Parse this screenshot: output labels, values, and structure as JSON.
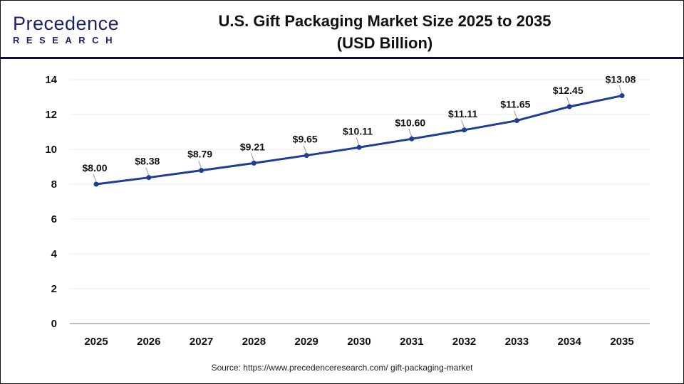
{
  "logo": {
    "main": "Precedence",
    "sub": "RESEARCH"
  },
  "title_line1": "U.S. Gift Packaging Market Size 2025 to 2035",
  "title_line2": "(USD Billion)",
  "source": "Source: https://www.precedenceresearch.com/ gift-packaging-market",
  "chart_data": {
    "type": "line",
    "title": "U.S. Gift Packaging Market Size 2025 to 2035 (USD Billion)",
    "categories": [
      "2025",
      "2026",
      "2027",
      "2028",
      "2029",
      "2030",
      "2031",
      "2032",
      "2033",
      "2034",
      "2035"
    ],
    "values": [
      8.0,
      8.38,
      8.79,
      9.21,
      9.65,
      10.11,
      10.6,
      11.11,
      11.65,
      12.45,
      13.08
    ],
    "data_labels": [
      "$8.00",
      "$8.38",
      "$8.79",
      "$9.21",
      "$9.65",
      "$10.11",
      "$10.60",
      "$11.11",
      "$11.65",
      "$12.45",
      "$13.08"
    ],
    "yticks": [
      0,
      2,
      4,
      6,
      8,
      10,
      12,
      14
    ],
    "ylim": [
      0,
      14
    ],
    "grid": true,
    "line_color": "#1f3c96",
    "xlabel": "",
    "ylabel": ""
  }
}
